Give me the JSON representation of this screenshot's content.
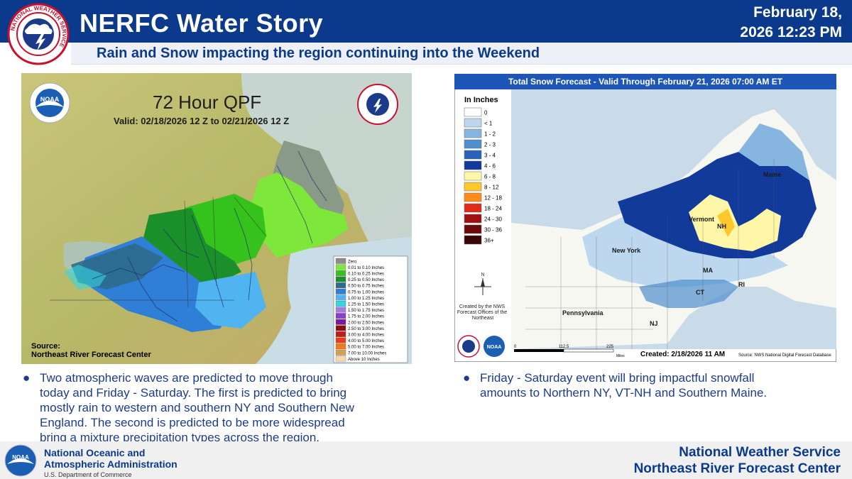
{
  "header": {
    "title": "NERFC Water Story",
    "date_line1": "February 18,",
    "date_line2": "2026 12:23 PM",
    "subtitle": "Rain and Snow impacting the region continuing into the Weekend"
  },
  "qpf_map": {
    "title": "72 Hour QPF",
    "valid": "Valid: 02/18/2026 12 Z to 02/21/2026 12 Z",
    "source_label": "Source:",
    "source_name": "Northeast River Forecast Center",
    "legend": [
      {
        "label": "Zero",
        "color": "#8c8c8c"
      },
      {
        "label": "0.01 to 0.10 Inches",
        "color": "#7ee83a"
      },
      {
        "label": "0.10 to 0.25 Inches",
        "color": "#36c21c"
      },
      {
        "label": "0.25 to 0.50 Inches",
        "color": "#1a8f2a"
      },
      {
        "label": "0.50 to 0.75 Inches",
        "color": "#2e6a8c"
      },
      {
        "label": "0.75 to 1.00 Inches",
        "color": "#2f7fd6"
      },
      {
        "label": "1.00 to 1.25 Inches",
        "color": "#4fb4f0"
      },
      {
        "label": "1.25 to 1.50 Inches",
        "color": "#34d7e0"
      },
      {
        "label": "1.50 to 1.75 Inches",
        "color": "#a27ce0"
      },
      {
        "label": "1.75 to 2.00 Inches",
        "color": "#8a3fd0"
      },
      {
        "label": "2.00 to 2.50 Inches",
        "color": "#7a1a9e"
      },
      {
        "label": "2.50 to 3.00 Inches",
        "color": "#8b1010"
      },
      {
        "label": "3.00 to 4.00 Inches",
        "color": "#c41a1a"
      },
      {
        "label": "4.00 to 5.00 Inches",
        "color": "#ee3a1a"
      },
      {
        "label": "5.00 to 7.00 Inches",
        "color": "#f07a1a"
      },
      {
        "label": "7.00 to 10.00 Inches",
        "color": "#d9a04a"
      },
      {
        "label": "Above 10 Inches",
        "color": "#f2d9b0"
      }
    ]
  },
  "snow_map": {
    "title": "Total Snow Forecast - Valid Through February 21, 2026 07:00 AM ET",
    "legend_title": "In Inches",
    "legend": [
      {
        "label": "0",
        "color": "#ffffff"
      },
      {
        "label": "< 1",
        "color": "#bdd7ee"
      },
      {
        "label": "1 - 2",
        "color": "#86b6e0"
      },
      {
        "label": "2 - 3",
        "color": "#4f8fcf"
      },
      {
        "label": "3 - 4",
        "color": "#2a62b8"
      },
      {
        "label": "4 - 6",
        "color": "#123a9a"
      },
      {
        "label": "6 - 8",
        "color": "#fff7a8"
      },
      {
        "label": "8 - 12",
        "color": "#ffc72c"
      },
      {
        "label": "12 - 18",
        "color": "#ff8c1a"
      },
      {
        "label": "18 - 24",
        "color": "#e02a1a"
      },
      {
        "label": "24 - 30",
        "color": "#a01010"
      },
      {
        "label": "30 - 36",
        "color": "#6a0a0a"
      },
      {
        "label": "36+",
        "color": "#3a0505"
      }
    ],
    "credit": "Created by the NWS Forecast Offices of the Northeast",
    "created": "Created: 2/18/2026 11 AM",
    "source": "Source: NWS National Digital Forecast Database",
    "scale_0": "0",
    "scale_mid": "112.5",
    "scale_max": "225",
    "scale_unit": "Miles",
    "compass_n": "N",
    "states": {
      "maine": "Maine",
      "vermont": "Vermont",
      "nh": "NH",
      "ma": "MA",
      "ct": "CT",
      "ri": "RI",
      "newyork": "New York",
      "pennsylvania": "Pennsylvania",
      "nj": "NJ"
    }
  },
  "bullets": {
    "left": "Two atmospheric waves are predicted to move through today and Friday - Saturday. The first is predicted to bring mostly rain to western and southern NY and Southern New England. The second is predicted to be more widespread bring a mixture precipitation types across the region.",
    "left_lines": [
      "Two atmospheric waves are predicted to move through",
      "today and Friday - Saturday. The first is predicted to bring",
      "mostly rain to western and southern NY and Southern New",
      "England. The second is predicted to be more widespread",
      "bring a mixture precipitation types across the region."
    ],
    "right_lines": [
      "Friday - Saturday event will bring impactful snowfall",
      "amounts to Northern NY, VT-NH and Southern Maine."
    ],
    "marker": "●"
  },
  "footer": {
    "noaa_line1": "National Oceanic and",
    "noaa_line2": "Atmospheric Administration",
    "noaa_dept": "U.S. Department of Commerce",
    "org_line1": "National Weather Service",
    "org_line2": "Northeast River Forecast Center"
  },
  "logos": {
    "noaa": "NOAA",
    "nws_ring": "NATIONAL WEATHER SERVICE"
  },
  "colors": {
    "header_bg": "#0b3a8c",
    "header_text": "#ffffff",
    "accent_text": "#1d3b8a"
  }
}
